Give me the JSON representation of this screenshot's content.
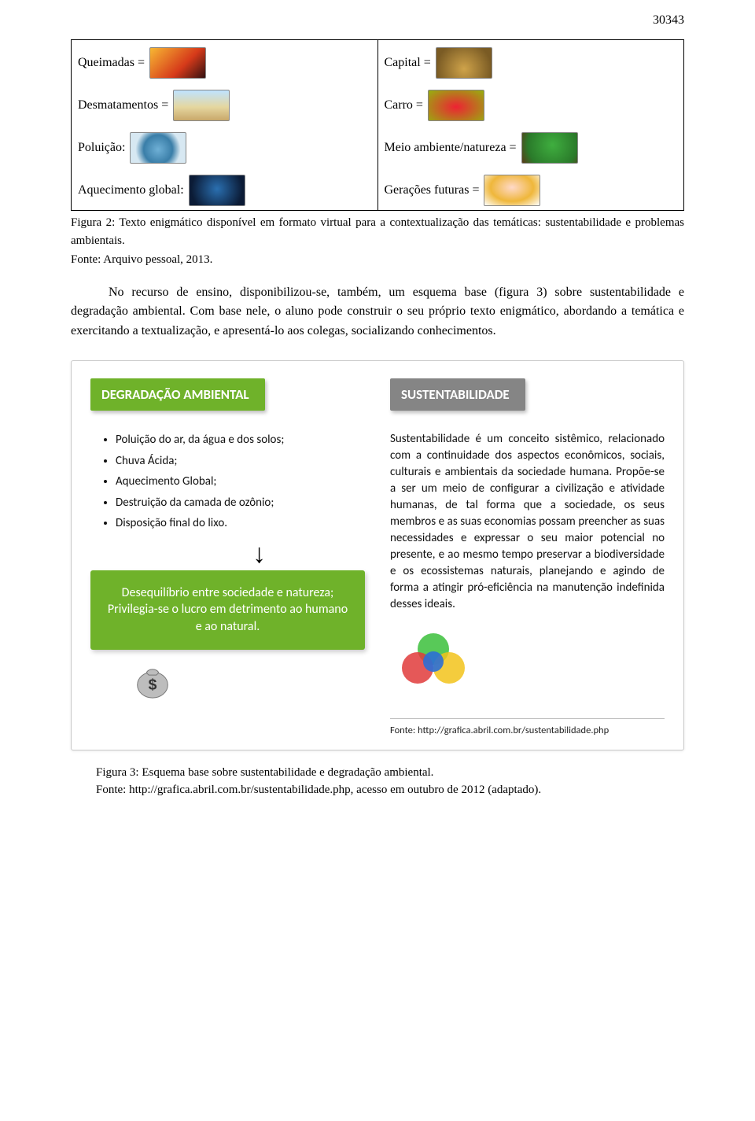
{
  "pageNumber": "30343",
  "iconTable": {
    "left": [
      {
        "label": "Queimadas =",
        "thumb": "linear-gradient(135deg,#f7b733,#d63a1a 60%,#311)"
      },
      {
        "label": "Desmatamentos =",
        "thumb": "linear-gradient(180deg,#bfe3ff,#e5d7a0 55%,#c9a86a)"
      },
      {
        "label": "Poluição:",
        "thumb": "radial-gradient(circle at 50% 55%,#6fb0d6 0%,#3a7ea8 45%,#d7e8f2 70%)"
      },
      {
        "label": "Aquecimento global:",
        "thumb": "radial-gradient(circle at 50% 45%,#2a6fb0,#0b1b36 80%)"
      }
    ],
    "right": [
      {
        "label": "Capital =",
        "thumb": "radial-gradient(circle at 50% 70%,#cfa34a,#7a5b24 80%)"
      },
      {
        "label": "Carro =",
        "thumb": "radial-gradient(ellipse at 50% 55%,#e23,#9a1 95%)"
      },
      {
        "label": "Meio ambiente/natureza =",
        "thumb": "radial-gradient(circle at 55% 40%,#3fae3f,#2a7a2a 70%,#5a3a1a 100%)"
      },
      {
        "label": "Gerações futuras =",
        "thumb": "radial-gradient(ellipse at 50% 40%,#ffd9c9,#efb73b 55%,#fff 100%)"
      }
    ]
  },
  "figure2": {
    "caption": "Figura 2: Texto enigmático disponível em formato virtual para a contextualização das temáticas: sustentabilidade e problemas ambientais.",
    "source": "Fonte: Arquivo pessoal, 2013."
  },
  "paragraph": "No recurso de ensino, disponibilizou-se, também, um esquema base (figura 3) sobre sustentabilidade e degradação ambiental. Com base nele, o aluno pode construir o seu próprio texto enigmático, abordando a temática e exercitando a textualização, e apresentá-lo aos colegas, socializando conhecimentos.",
  "diagram": {
    "left": {
      "header": "DEGRADAÇÃO AMBIENTAL",
      "headerColor": "#6fb22a",
      "bullets": [
        "Poluição do ar, da água e dos solos;",
        "Chuva Ácida;",
        "Aquecimento Global;",
        "Destruição da camada de ozônio;",
        "Disposição final do lixo."
      ],
      "boxText": "Desequilíbrio entre sociedade e natureza;\nPrivilegia-se o lucro em detrimento ao humano e ao natural.",
      "boxColor": "#6fb22a"
    },
    "right": {
      "header": "SUSTENTABILIDADE",
      "headerColor": "#858585",
      "definition": "Sustentabilidade é um conceito sistêmico, relacionado com a continuidade dos aspectos econômicos, sociais, culturais e ambientais da sociedade humana. Propõe-se a ser um meio de configurar a civilização e atividade humanas, de tal forma que a sociedade, os seus membros e as suas economias possam preencher as suas necessidades e expressar o seu maior potencial no presente, e ao mesmo tempo preservar a biodiversidade e os ecossistemas naturais, planejando e agindo de forma a atingir pró-eficiência na manutenção indefinida desses ideais."
    },
    "innerSource": "Fonte: http://grafica.abril.com.br/sustentabilidade.php"
  },
  "figure3": {
    "caption": "Figura 3: Esquema base sobre sustentabilidade e degradação ambiental.",
    "source": "Fonte: http://grafica.abril.com.br/sustentabilidade.php, acesso em outubro de 2012 (adaptado)."
  }
}
